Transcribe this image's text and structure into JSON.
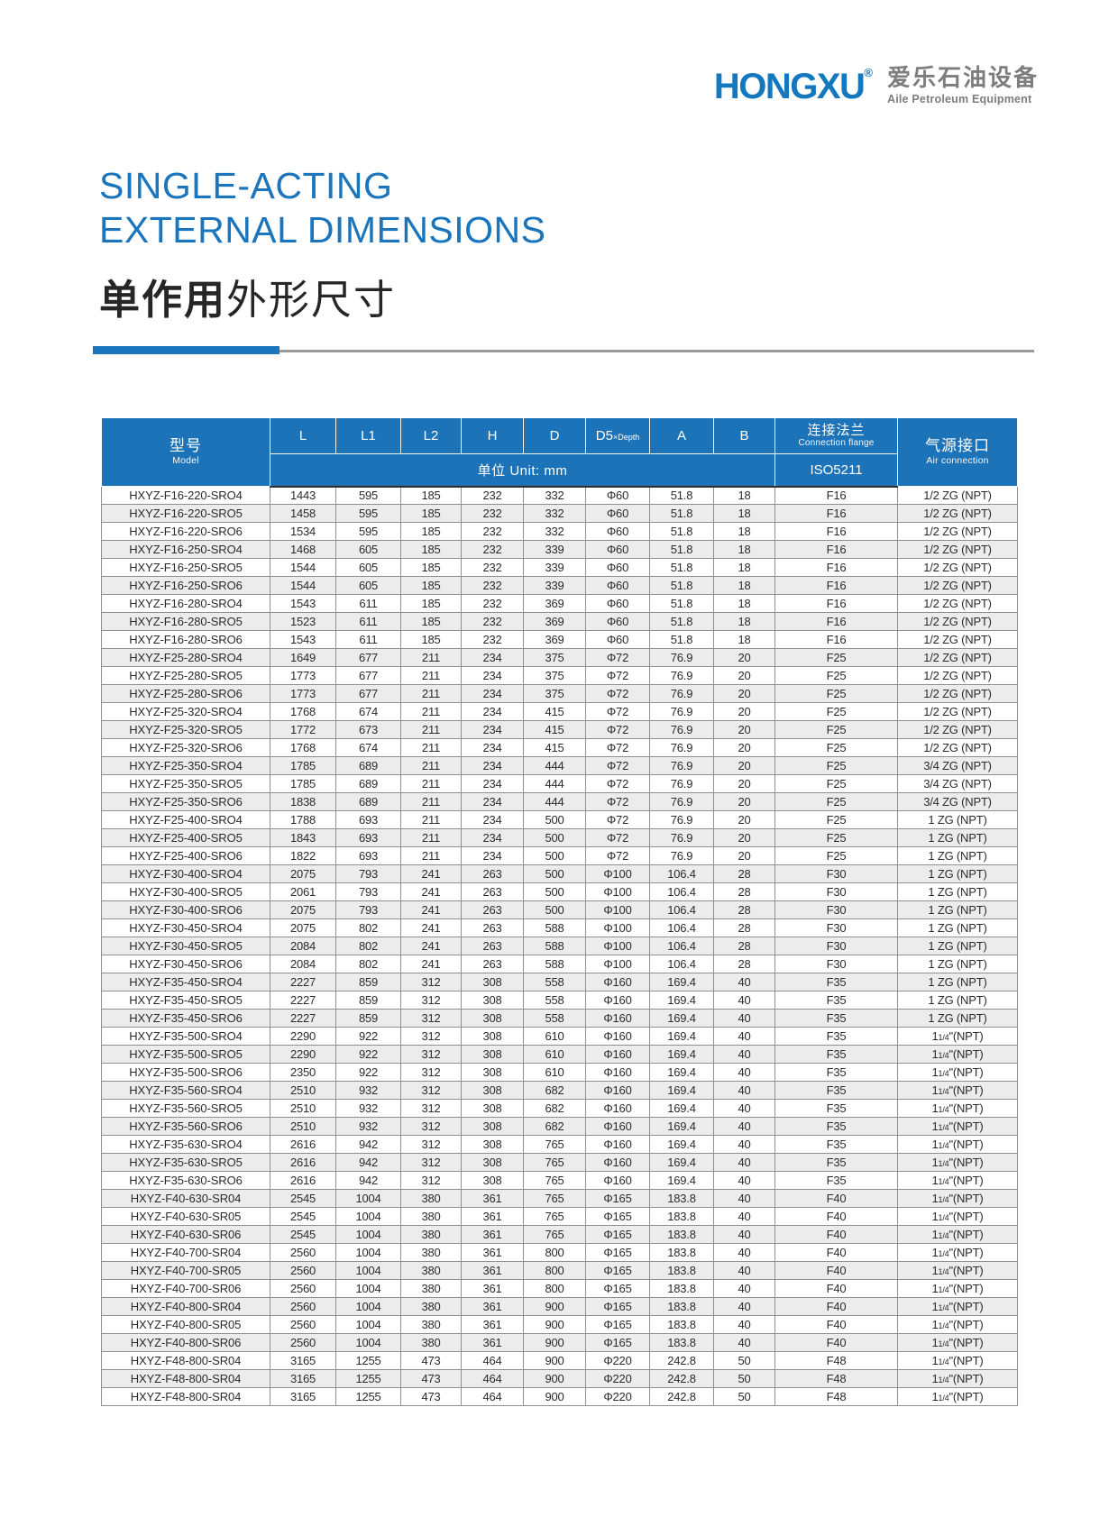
{
  "logo": {
    "brand": "HONGXU",
    "reg": "®",
    "cn": "爱乐石油设备",
    "en": "Aile Petroleum Equipment"
  },
  "title": {
    "line1": "SINGLE-ACTING",
    "line2": "EXTERNAL DIMENSIONS",
    "cn_bold": "单作用",
    "cn_rest": "外形尺寸"
  },
  "colors": {
    "brand_blue": "#1B75BC",
    "header_blue": "#1D73B8",
    "row_alt_gray": "#ECECED"
  },
  "table": {
    "header": {
      "model_cn": "型号",
      "model_en": "Model",
      "dims": [
        "L",
        "L1",
        "L2",
        "H",
        "D"
      ],
      "d5_main": "D5",
      "d5_sub": "×Depth",
      "a": "A",
      "b": "B",
      "flange_cn": "连接法兰",
      "flange_en": "Connection flange",
      "flange_std": "ISO5211",
      "air_cn": "气源接口",
      "air_en": "Air connection",
      "unit": "单位 Unit: mm"
    },
    "rows": [
      [
        "HXYZ-F16-220-SRO4",
        "1443",
        "595",
        "185",
        "232",
        "332",
        "Φ60",
        "51.8",
        "18",
        "F16",
        "1/2 ZG (NPT)"
      ],
      [
        "HXYZ-F16-220-SRO5",
        "1458",
        "595",
        "185",
        "232",
        "332",
        "Φ60",
        "51.8",
        "18",
        "F16",
        "1/2 ZG (NPT)"
      ],
      [
        "HXYZ-F16-220-SRO6",
        "1534",
        "595",
        "185",
        "232",
        "332",
        "Φ60",
        "51.8",
        "18",
        "F16",
        "1/2 ZG (NPT)"
      ],
      [
        "HXYZ-F16-250-SRO4",
        "1468",
        "605",
        "185",
        "232",
        "339",
        "Φ60",
        "51.8",
        "18",
        "F16",
        "1/2 ZG (NPT)"
      ],
      [
        "HXYZ-F16-250-SRO5",
        "1544",
        "605",
        "185",
        "232",
        "339",
        "Φ60",
        "51.8",
        "18",
        "F16",
        "1/2 ZG (NPT)"
      ],
      [
        "HXYZ-F16-250-SRO6",
        "1544",
        "605",
        "185",
        "232",
        "339",
        "Φ60",
        "51.8",
        "18",
        "F16",
        "1/2 ZG (NPT)"
      ],
      [
        "HXYZ-F16-280-SRO4",
        "1543",
        "611",
        "185",
        "232",
        "369",
        "Φ60",
        "51.8",
        "18",
        "F16",
        "1/2 ZG (NPT)"
      ],
      [
        "HXYZ-F16-280-SRO5",
        "1523",
        "611",
        "185",
        "232",
        "369",
        "Φ60",
        "51.8",
        "18",
        "F16",
        "1/2 ZG (NPT)"
      ],
      [
        "HXYZ-F16-280-SRO6",
        "1543",
        "611",
        "185",
        "232",
        "369",
        "Φ60",
        "51.8",
        "18",
        "F16",
        "1/2 ZG (NPT)"
      ],
      [
        "HXYZ-F25-280-SRO4",
        "1649",
        "677",
        "211",
        "234",
        "375",
        "Φ72",
        "76.9",
        "20",
        "F25",
        "1/2 ZG (NPT)"
      ],
      [
        "HXYZ-F25-280-SRO5",
        "1773",
        "677",
        "211",
        "234",
        "375",
        "Φ72",
        "76.9",
        "20",
        "F25",
        "1/2 ZG (NPT)"
      ],
      [
        "HXYZ-F25-280-SRO6",
        "1773",
        "677",
        "211",
        "234",
        "375",
        "Φ72",
        "76.9",
        "20",
        "F25",
        "1/2 ZG (NPT)"
      ],
      [
        "HXYZ-F25-320-SRO4",
        "1768",
        "674",
        "211",
        "234",
        "415",
        "Φ72",
        "76.9",
        "20",
        "F25",
        "1/2 ZG (NPT)"
      ],
      [
        "HXYZ-F25-320-SRO5",
        "1772",
        "673",
        "211",
        "234",
        "415",
        "Φ72",
        "76.9",
        "20",
        "F25",
        "1/2 ZG (NPT)"
      ],
      [
        "HXYZ-F25-320-SRO6",
        "1768",
        "674",
        "211",
        "234",
        "415",
        "Φ72",
        "76.9",
        "20",
        "F25",
        "1/2 ZG (NPT)"
      ],
      [
        "HXYZ-F25-350-SRO4",
        "1785",
        "689",
        "211",
        "234",
        "444",
        "Φ72",
        "76.9",
        "20",
        "F25",
        "3/4 ZG (NPT)"
      ],
      [
        "HXYZ-F25-350-SRO5",
        "1785",
        "689",
        "211",
        "234",
        "444",
        "Φ72",
        "76.9",
        "20",
        "F25",
        "3/4 ZG (NPT)"
      ],
      [
        "HXYZ-F25-350-SRO6",
        "1838",
        "689",
        "211",
        "234",
        "444",
        "Φ72",
        "76.9",
        "20",
        "F25",
        "3/4 ZG (NPT)"
      ],
      [
        "HXYZ-F25-400-SRO4",
        "1788",
        "693",
        "211",
        "234",
        "500",
        "Φ72",
        "76.9",
        "20",
        "F25",
        "1 ZG (NPT)"
      ],
      [
        "HXYZ-F25-400-SRO5",
        "1843",
        "693",
        "211",
        "234",
        "500",
        "Φ72",
        "76.9",
        "20",
        "F25",
        "1 ZG (NPT)"
      ],
      [
        "HXYZ-F25-400-SRO6",
        "1822",
        "693",
        "211",
        "234",
        "500",
        "Φ72",
        "76.9",
        "20",
        "F25",
        "1 ZG (NPT)"
      ],
      [
        "HXYZ-F30-400-SRO4",
        "2075",
        "793",
        "241",
        "263",
        "500",
        "Φ100",
        "106.4",
        "28",
        "F30",
        "1 ZG (NPT)"
      ],
      [
        "HXYZ-F30-400-SRO5",
        "2061",
        "793",
        "241",
        "263",
        "500",
        "Φ100",
        "106.4",
        "28",
        "F30",
        "1 ZG (NPT)"
      ],
      [
        "HXYZ-F30-400-SRO6",
        "2075",
        "793",
        "241",
        "263",
        "500",
        "Φ100",
        "106.4",
        "28",
        "F30",
        "1 ZG (NPT)"
      ],
      [
        "HXYZ-F30-450-SRO4",
        "2075",
        "802",
        "241",
        "263",
        "588",
        "Φ100",
        "106.4",
        "28",
        "F30",
        "1 ZG (NPT)"
      ],
      [
        "HXYZ-F30-450-SRO5",
        "2084",
        "802",
        "241",
        "263",
        "588",
        "Φ100",
        "106.4",
        "28",
        "F30",
        "1 ZG (NPT)"
      ],
      [
        "HXYZ-F30-450-SRO6",
        "2084",
        "802",
        "241",
        "263",
        "588",
        "Φ100",
        "106.4",
        "28",
        "F30",
        "1 ZG (NPT)"
      ],
      [
        "HXYZ-F35-450-SRO4",
        "2227",
        "859",
        "312",
        "308",
        "558",
        "Φ160",
        "169.4",
        "40",
        "F35",
        "1 ZG (NPT)"
      ],
      [
        "HXYZ-F35-450-SRO5",
        "2227",
        "859",
        "312",
        "308",
        "558",
        "Φ160",
        "169.4",
        "40",
        "F35",
        "1 ZG (NPT)"
      ],
      [
        "HXYZ-F35-450-SRO6",
        "2227",
        "859",
        "312",
        "308",
        "558",
        "Φ160",
        "169.4",
        "40",
        "F35",
        "1 ZG (NPT)"
      ],
      [
        "HXYZ-F35-500-SRO4",
        "2290",
        "922",
        "312",
        "308",
        "610",
        "Φ160",
        "169.4",
        "40",
        "F35",
        "1 1/4\"(NPT)"
      ],
      [
        "HXYZ-F35-500-SRO5",
        "2290",
        "922",
        "312",
        "308",
        "610",
        "Φ160",
        "169.4",
        "40",
        "F35",
        "1 1/4\"(NPT)"
      ],
      [
        "HXYZ-F35-500-SRO6",
        "2350",
        "922",
        "312",
        "308",
        "610",
        "Φ160",
        "169.4",
        "40",
        "F35",
        "1 1/4\"(NPT)"
      ],
      [
        "HXYZ-F35-560-SRO4",
        "2510",
        "932",
        "312",
        "308",
        "682",
        "Φ160",
        "169.4",
        "40",
        "F35",
        "1 1/4\"(NPT)"
      ],
      [
        "HXYZ-F35-560-SRO5",
        "2510",
        "932",
        "312",
        "308",
        "682",
        "Φ160",
        "169.4",
        "40",
        "F35",
        "1 1/4\"(NPT)"
      ],
      [
        "HXYZ-F35-560-SRO6",
        "2510",
        "932",
        "312",
        "308",
        "682",
        "Φ160",
        "169.4",
        "40",
        "F35",
        "1 1/4\"(NPT)"
      ],
      [
        "HXYZ-F35-630-SRO4",
        "2616",
        "942",
        "312",
        "308",
        "765",
        "Φ160",
        "169.4",
        "40",
        "F35",
        "1 1/4\"(NPT)"
      ],
      [
        "HXYZ-F35-630-SRO5",
        "2616",
        "942",
        "312",
        "308",
        "765",
        "Φ160",
        "169.4",
        "40",
        "F35",
        "1 1/4\"(NPT)"
      ],
      [
        "HXYZ-F35-630-SRO6",
        "2616",
        "942",
        "312",
        "308",
        "765",
        "Φ160",
        "169.4",
        "40",
        "F35",
        "1 1/4\"(NPT)"
      ],
      [
        "HXYZ-F40-630-SR04",
        "2545",
        "1004",
        "380",
        "361",
        "765",
        "Φ165",
        "183.8",
        "40",
        "F40",
        "1 1/4\"(NPT)"
      ],
      [
        "HXYZ-F40-630-SR05",
        "2545",
        "1004",
        "380",
        "361",
        "765",
        "Φ165",
        "183.8",
        "40",
        "F40",
        "1 1/4\"(NPT)"
      ],
      [
        "HXYZ-F40-630-SR06",
        "2545",
        "1004",
        "380",
        "361",
        "765",
        "Φ165",
        "183.8",
        "40",
        "F40",
        "1 1/4\"(NPT)"
      ],
      [
        "HXYZ-F40-700-SR04",
        "2560",
        "1004",
        "380",
        "361",
        "800",
        "Φ165",
        "183.8",
        "40",
        "F40",
        "1 1/4\"(NPT)"
      ],
      [
        "HXYZ-F40-700-SR05",
        "2560",
        "1004",
        "380",
        "361",
        "800",
        "Φ165",
        "183.8",
        "40",
        "F40",
        "1 1/4\"(NPT)"
      ],
      [
        "HXYZ-F40-700-SR06",
        "2560",
        "1004",
        "380",
        "361",
        "800",
        "Φ165",
        "183.8",
        "40",
        "F40",
        "1 1/4\"(NPT)"
      ],
      [
        "HXYZ-F40-800-SR04",
        "2560",
        "1004",
        "380",
        "361",
        "900",
        "Φ165",
        "183.8",
        "40",
        "F40",
        "1 1/4\"(NPT)"
      ],
      [
        "HXYZ-F40-800-SR05",
        "2560",
        "1004",
        "380",
        "361",
        "900",
        "Φ165",
        "183.8",
        "40",
        "F40",
        "1 1/4\"(NPT)"
      ],
      [
        "HXYZ-F40-800-SR06",
        "2560",
        "1004",
        "380",
        "361",
        "900",
        "Φ165",
        "183.8",
        "40",
        "F40",
        "1 1/4\"(NPT)"
      ],
      [
        "HXYZ-F48-800-SR04",
        "3165",
        "1255",
        "473",
        "464",
        "900",
        "Φ220",
        "242.8",
        "50",
        "F48",
        "1 1/4\"(NPT)"
      ],
      [
        "HXYZ-F48-800-SR04",
        "3165",
        "1255",
        "473",
        "464",
        "900",
        "Φ220",
        "242.8",
        "50",
        "F48",
        "1 1/4\"(NPT)"
      ],
      [
        "HXYZ-F48-800-SR04",
        "3165",
        "1255",
        "473",
        "464",
        "900",
        "Φ220",
        "242.8",
        "50",
        "F48",
        "1 1/4\"(NPT)"
      ]
    ]
  }
}
